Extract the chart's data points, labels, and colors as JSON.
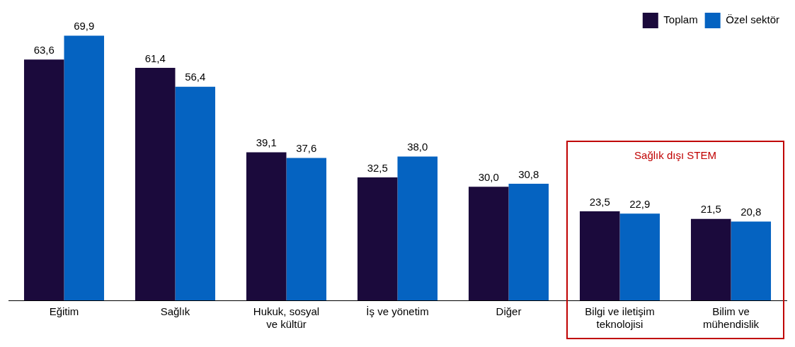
{
  "chart_data": {
    "type": "bar",
    "categories": [
      "Eğitim",
      "Sağlık",
      "Hukuk, sosyal ve kültür",
      "İş ve yönetim",
      "Diğer",
      "Bilgi ve iletişim teknolojisi",
      "Bilim ve mühendislik"
    ],
    "series": [
      {
        "name": "Toplam",
        "color": "#1b0a3c",
        "values": [
          63.6,
          61.4,
          39.1,
          32.5,
          30.0,
          23.5,
          21.5
        ],
        "value_labels": [
          "63,6",
          "61,4",
          "39,1",
          "32,5",
          "30,0",
          "23,5",
          "21,5"
        ]
      },
      {
        "name": "Özel sektör",
        "color": "#0563c1",
        "values": [
          69.9,
          56.4,
          37.6,
          38.0,
          30.8,
          22.9,
          20.8
        ],
        "value_labels": [
          "69,9",
          "56,4",
          "37,6",
          "38,0",
          "30,8",
          "22,9",
          "20,8"
        ]
      }
    ],
    "annotations": [
      "Sağlık dışı STEM"
    ],
    "legend": "top right",
    "grid": false
  }
}
